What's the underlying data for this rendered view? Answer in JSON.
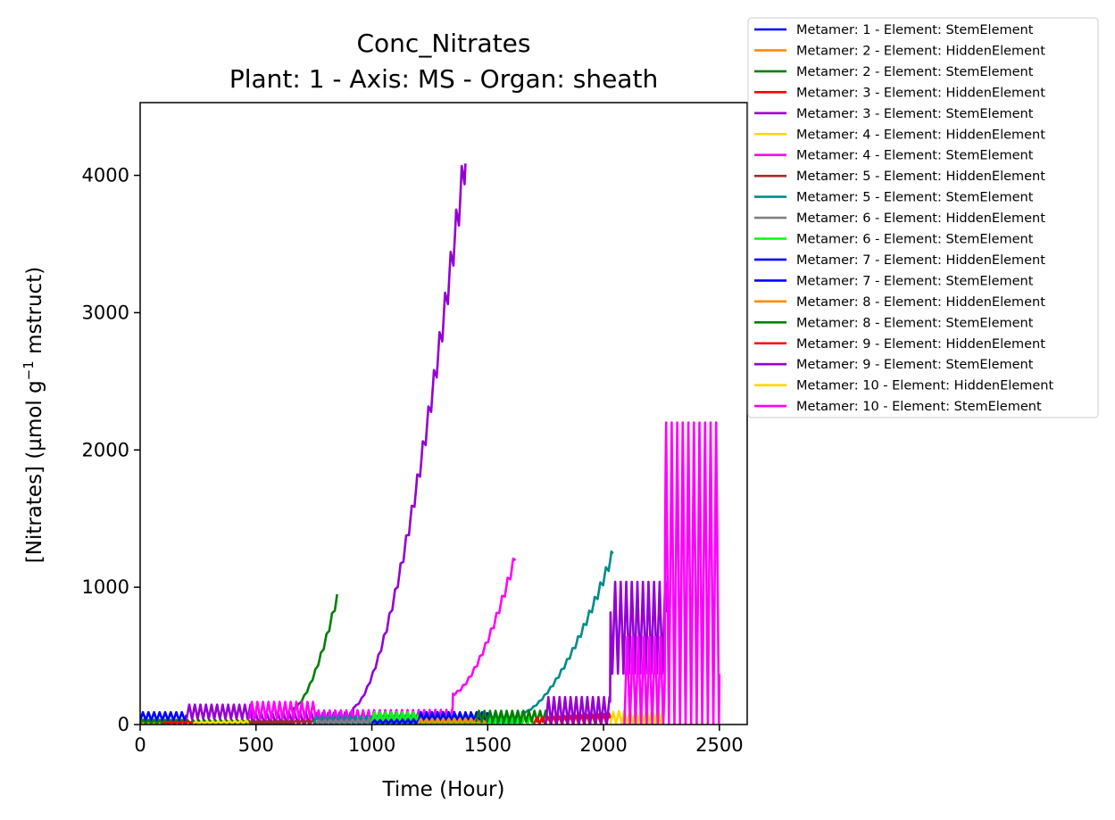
{
  "chart_data": {
    "type": "line",
    "title": "Conc_Nitrates",
    "subtitle": "Plant: 1 - Axis: MS - Organ: sheath",
    "xlabel": "Time (Hour)",
    "ylabel_main": "[Nitrates] (µmol g",
    "ylabel_sup": "−1",
    "ylabel_tail": " mstruct)",
    "xlim": [
      0,
      2620
    ],
    "ylim": [
      0,
      4530
    ],
    "xticks": [
      0,
      500,
      1000,
      1500,
      2000,
      2500
    ],
    "yticks": [
      0,
      1000,
      2000,
      3000,
      4000
    ],
    "grid": false,
    "legend_position": "outside-top-right",
    "series": [
      {
        "name": "Metamer: 1 - Element: StemElement",
        "color": "#0000ff",
        "start": 0,
        "end": 200,
        "amp0": 25,
        "amp1": 45,
        "spikes": [
          {
            "start": 0,
            "end": 200,
            "base": 30,
            "top": 90
          }
        ]
      },
      {
        "name": "Metamer: 2 - Element: HiddenElement",
        "color": "#ff8c00",
        "start": 0,
        "end": 100,
        "amp0": 10,
        "amp1": 15
      },
      {
        "name": "Metamer: 2 - Element: StemElement",
        "color": "#008000",
        "start": 0,
        "end": 850,
        "amp0": 35,
        "amp1": 25,
        "ramp": {
          "start": 660,
          "end": 850,
          "v0": 120,
          "v1": 960
        }
      },
      {
        "name": "Metamer: 3 - Element: HiddenElement",
        "color": "#ff0000",
        "start": 100,
        "end": 230,
        "amp0": 15,
        "amp1": 25
      },
      {
        "name": "Metamer: 3 - Element: StemElement",
        "color": "#9400d3",
        "start": 200,
        "end": 1405,
        "amp0": 70,
        "amp1": 100,
        "spikes": [
          {
            "start": 200,
            "end": 480,
            "base": 40,
            "top": 145
          }
        ],
        "ramp": {
          "start": 920,
          "end": 1405,
          "v0": 130,
          "v1": 4300
        }
      },
      {
        "name": "Metamer: 4 - Element: HiddenElement",
        "color": "#ffd700",
        "start": 230,
        "end": 470,
        "amp0": 20,
        "amp1": 30
      },
      {
        "name": "Metamer: 4 - Element: StemElement",
        "color": "#ff00ff",
        "start": 470,
        "end": 1620,
        "amp0": 100,
        "amp1": 110,
        "spikes": [
          {
            "start": 470,
            "end": 760,
            "base": 40,
            "top": 165
          }
        ],
        "ramp": {
          "start": 1350,
          "end": 1620,
          "v0": 230,
          "v1": 1270
        }
      },
      {
        "name": "Metamer: 5 - Element: HiddenElement",
        "color": "#a52a2a",
        "start": 470,
        "end": 760,
        "amp0": 25,
        "amp1": 35
      },
      {
        "name": "Metamer: 5 - Element: StemElement",
        "color": "#008b8b",
        "start": 750,
        "end": 2040,
        "amp0": 60,
        "amp1": 80,
        "ramp": {
          "start": 1650,
          "end": 2040,
          "v0": 90,
          "v1": 1290
        }
      },
      {
        "name": "Metamer: 6 - Element: HiddenElement",
        "color": "#808080",
        "start": 760,
        "end": 1000,
        "amp0": 30,
        "amp1": 40
      },
      {
        "name": "Metamer: 6 - Element: StemElement",
        "color": "#00ff00",
        "start": 1000,
        "end": 1700,
        "amp0": 45,
        "amp1": 60,
        "spikes": [
          {
            "start": 1000,
            "end": 1200,
            "base": 20,
            "top": 90
          }
        ]
      },
      {
        "name": "Metamer: 7 - Element: HiddenElement",
        "color": "#0000ff",
        "start": 1000,
        "end": 1200,
        "amp0": 30,
        "amp1": 40
      },
      {
        "name": "Metamer: 7 - Element: StemElement",
        "color": "#0000ff",
        "start": 1200,
        "end": 1500,
        "amp0": 40,
        "amp1": 60,
        "spikes": [
          {
            "start": 1200,
            "end": 1500,
            "base": 20,
            "top": 90
          }
        ]
      },
      {
        "name": "Metamer: 8 - Element: HiddenElement",
        "color": "#ff8c00",
        "start": 1200,
        "end": 1500,
        "amp0": 40,
        "amp1": 45
      },
      {
        "name": "Metamer: 8 - Element: StemElement",
        "color": "#008000",
        "start": 1450,
        "end": 1760,
        "amp0": 50,
        "amp1": 70,
        "spikes": [
          {
            "start": 1450,
            "end": 1760,
            "base": 20,
            "top": 100
          }
        ]
      },
      {
        "name": "Metamer: 9 - Element: HiddenElement",
        "color": "#ff0000",
        "start": 1700,
        "end": 2030,
        "amp0": 50,
        "amp1": 80
      },
      {
        "name": "Metamer: 9 - Element: StemElement",
        "color": "#9400d3",
        "start": 1750,
        "end": 2270,
        "amp0": 150,
        "amp1": 400,
        "spikes": [
          {
            "start": 1750,
            "end": 2030,
            "base": 0,
            "top": 200
          },
          {
            "start": 2030,
            "end": 2270,
            "base": 370,
            "top": 1040
          }
        ]
      },
      {
        "name": "Metamer: 10 - Element: HiddenElement",
        "color": "#ffd700",
        "start": 2030,
        "end": 2260,
        "amp0": 90,
        "amp1": 130
      },
      {
        "name": "Metamer: 10 - Element: StemElement",
        "color": "#ff00ff",
        "start": 2090,
        "end": 2500,
        "amp0": 300,
        "amp1": 1500,
        "spikes": [
          {
            "start": 2090,
            "end": 2265,
            "base": 0,
            "top": 640
          },
          {
            "start": 2265,
            "end": 2500,
            "base": 0,
            "top": 2200
          }
        ]
      }
    ]
  }
}
